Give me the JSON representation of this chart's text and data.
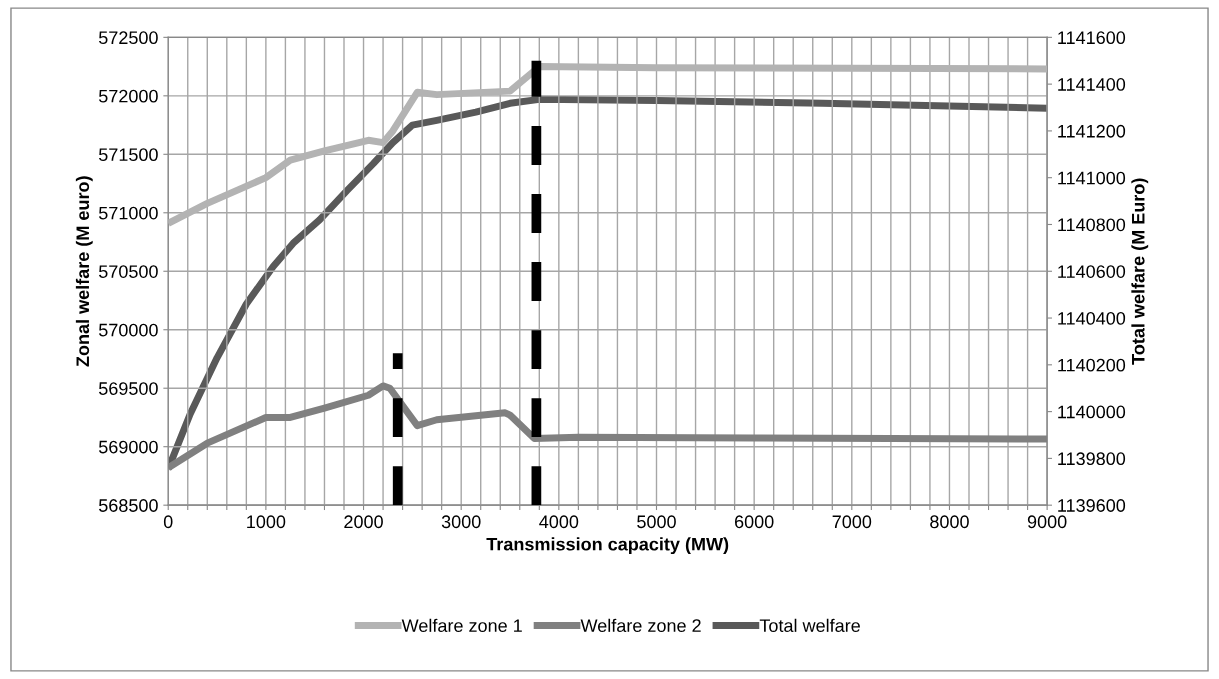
{
  "chart_data": {
    "type": "line",
    "xlabel": "Transmission capacity (MW)",
    "ylabel": "Zonal welfare (M euro)",
    "y2label": "Total welfare (M Euro)",
    "xlim": [
      0,
      9000
    ],
    "xticks": [
      0,
      {
        "value": 200,
        "label": null
      },
      {
        "value": 400,
        "label": null
      },
      {
        "value": 600,
        "label": null
      },
      {
        "value": 800,
        "label": null
      },
      1000,
      {
        "value": 1200,
        "label": null
      },
      {
        "value": 1400,
        "label": null
      },
      {
        "value": 1600,
        "label": null
      },
      {
        "value": 1800,
        "label": null
      },
      2000,
      {
        "value": 2200,
        "label": null
      },
      {
        "value": 2400,
        "label": null
      },
      {
        "value": 2600,
        "label": null
      },
      {
        "value": 2800,
        "label": null
      },
      3000,
      {
        "value": 3200,
        "label": null
      },
      {
        "value": 3400,
        "label": null
      },
      {
        "value": 3600,
        "label": null
      },
      {
        "value": 3800,
        "label": null
      },
      4000,
      {
        "value": 4200,
        "label": null
      },
      {
        "value": 4400,
        "label": null
      },
      {
        "value": 4600,
        "label": null
      },
      {
        "value": 4800,
        "label": null
      },
      5000,
      {
        "value": 5200,
        "label": null
      },
      {
        "value": 5400,
        "label": null
      },
      {
        "value": 5600,
        "label": null
      },
      {
        "value": 5800,
        "label": null
      },
      6000,
      {
        "value": 6200,
        "label": null
      },
      {
        "value": 6400,
        "label": null
      },
      {
        "value": 6600,
        "label": null
      },
      {
        "value": 6800,
        "label": null
      },
      7000,
      {
        "value": 7200,
        "label": null
      },
      {
        "value": 7400,
        "label": null
      },
      {
        "value": 7600,
        "label": null
      },
      {
        "value": 7800,
        "label": null
      },
      8000,
      {
        "value": 8200,
        "label": null
      },
      {
        "value": 8400,
        "label": null
      },
      {
        "value": 8600,
        "label": null
      },
      {
        "value": 8800,
        "label": null
      },
      9000
    ],
    "ylim": [
      568500,
      572500
    ],
    "yticks": [
      568500,
      569000,
      569500,
      570000,
      570500,
      571000,
      571500,
      572000,
      572500
    ],
    "y2lim": [
      1139600,
      1141600
    ],
    "y2ticks": [
      1139600,
      1139800,
      1140000,
      1140200,
      1140400,
      1140600,
      1140800,
      1141000,
      1141200,
      1141400,
      1141600
    ],
    "grid": true,
    "legend": "bottom",
    "series": [
      {
        "name": "Welfare zone 1",
        "color": "#b3b3b3",
        "x": [
          0,
          400,
          1000,
          1250,
          1600,
          2050,
          2200,
          2300,
          2550,
          2750,
          3500,
          3800,
          5000,
          7000,
          9000
        ],
        "values": [
          570910,
          571080,
          571300,
          571450,
          571530,
          571620,
          571600,
          571700,
          572030,
          572010,
          572040,
          572250,
          572240,
          572235,
          572230
        ]
      },
      {
        "name": "Welfare zone 2",
        "color": "#808080",
        "x": [
          0,
          400,
          1000,
          1250,
          1600,
          2050,
          2200,
          2270,
          2550,
          2750,
          3450,
          3500,
          3750,
          4200,
          6000,
          9000
        ],
        "values": [
          568820,
          569030,
          569250,
          569250,
          569330,
          569440,
          569520,
          569500,
          569180,
          569230,
          569290,
          569270,
          569070,
          569080,
          569075,
          569065
        ]
      },
      {
        "name": "Total welfare",
        "color": "#595959",
        "axis": "y2",
        "x": [
          0,
          225,
          500,
          800,
          1075,
          1280,
          1550,
          1830,
          2100,
          2300,
          2500,
          2750,
          3150,
          3500,
          3800,
          5000,
          6700,
          9000
        ],
        "values": [
          1139755,
          1139990,
          1140230,
          1140460,
          1140620,
          1140720,
          1140820,
          1140945,
          1141060,
          1141150,
          1141225,
          1141245,
          1141280,
          1141318,
          1141335,
          1141330,
          1141318,
          1141297
        ]
      },
      {
        "color": "#000000",
        "line_style": "dashed",
        "x": [
          2350,
          2350
        ],
        "values": [
          568500,
          569800
        ]
      },
      {
        "color": "#000000",
        "line_style": "dashed",
        "x": [
          3770,
          3770
        ],
        "values": [
          568500,
          572300
        ]
      }
    ]
  }
}
